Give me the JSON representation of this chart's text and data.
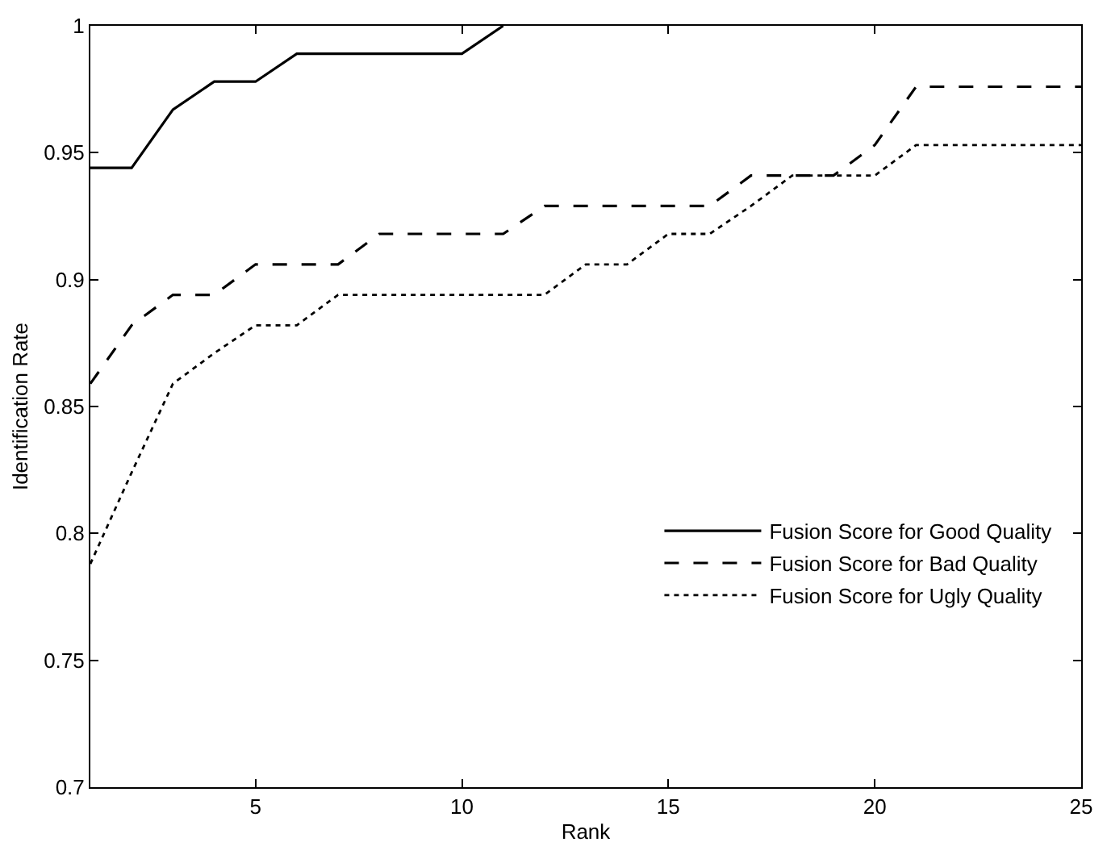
{
  "chart_data": {
    "type": "line",
    "xlabel": "Rank",
    "ylabel": "Identification Rate",
    "xlim": [
      1,
      25
    ],
    "xticks": [
      5,
      10,
      15,
      20,
      25
    ],
    "ylim": [
      0.7,
      1
    ],
    "yticks": [
      0.7,
      0.75,
      0.8,
      0.85,
      0.9,
      0.95,
      1
    ],
    "legend": "bottom right",
    "marker": "none",
    "series": [
      {
        "name": "Fusion Score for Good Quality",
        "color": "#000000",
        "line_style": "solid",
        "x": [
          1,
          2,
          3,
          4,
          5,
          6,
          7,
          8,
          9,
          10,
          11
        ],
        "values": [
          0.944,
          0.944,
          0.967,
          0.978,
          0.978,
          0.989,
          0.989,
          0.989,
          0.989,
          0.989,
          1.0
        ]
      },
      {
        "name": "Fusion Score for Bad Quality",
        "color": "#000000",
        "line_style": "dashed",
        "x": [
          1,
          2,
          3,
          4,
          5,
          6,
          7,
          8,
          9,
          10,
          11,
          12,
          13,
          14,
          15,
          16,
          17,
          18,
          19,
          20,
          21,
          22,
          23,
          24,
          25
        ],
        "values": [
          0.859,
          0.882,
          0.894,
          0.894,
          0.906,
          0.906,
          0.906,
          0.918,
          0.918,
          0.918,
          0.918,
          0.929,
          0.929,
          0.929,
          0.929,
          0.929,
          0.941,
          0.941,
          0.941,
          0.953,
          0.976,
          0.976,
          0.976,
          0.976,
          0.976
        ]
      },
      {
        "name": "Fusion Score for Ugly Quality",
        "color": "#000000",
        "line_style": "dotted",
        "x": [
          1,
          2,
          3,
          4,
          5,
          6,
          7,
          8,
          9,
          10,
          11,
          12,
          13,
          14,
          15,
          16,
          17,
          18,
          19,
          20,
          21,
          22,
          23,
          24,
          25
        ],
        "values": [
          0.788,
          0.824,
          0.859,
          0.871,
          0.882,
          0.882,
          0.894,
          0.894,
          0.894,
          0.894,
          0.894,
          0.894,
          0.906,
          0.906,
          0.918,
          0.918,
          0.929,
          0.941,
          0.941,
          0.941,
          0.953,
          0.953,
          0.953,
          0.953,
          0.953
        ]
      }
    ]
  }
}
